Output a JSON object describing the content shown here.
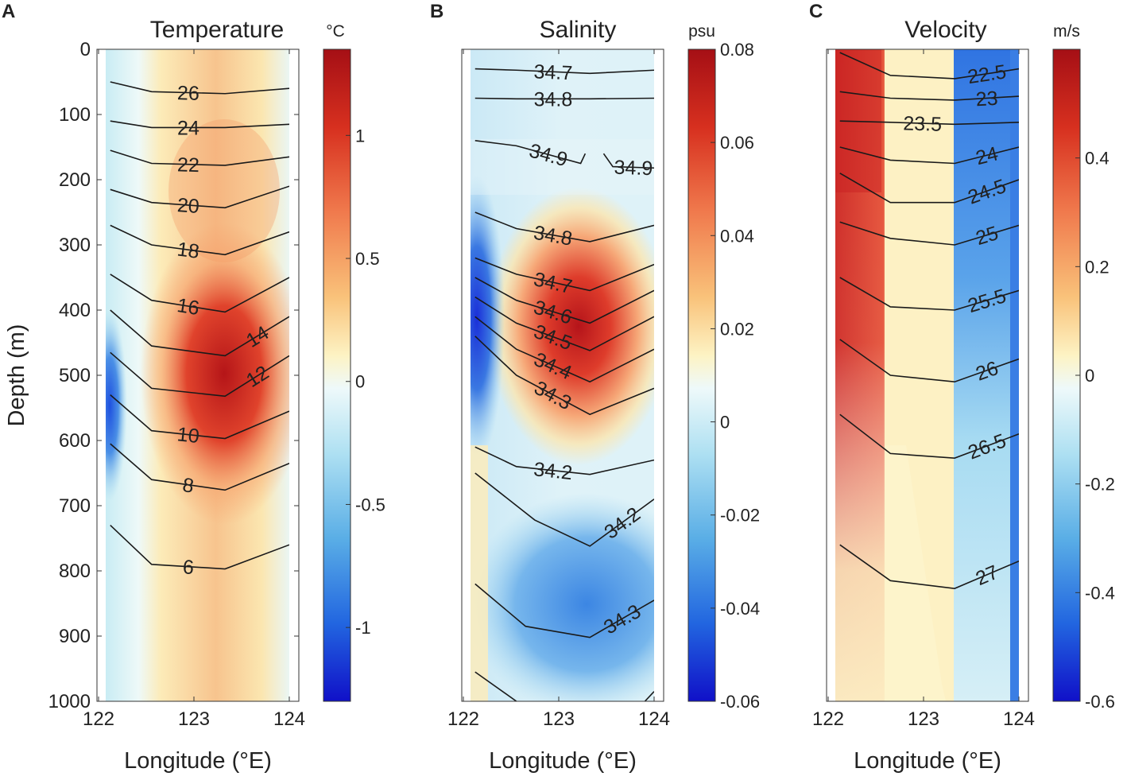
{
  "figure": {
    "ylabel": "Depth (m)",
    "y_ticks": [
      "0",
      "100",
      "200",
      "300",
      "400",
      "500",
      "600",
      "700",
      "800",
      "900",
      "1000"
    ]
  },
  "chart_data": [
    {
      "type": "heatmap",
      "panel": "A",
      "title": "Temperature",
      "xlabel": "Longitude (°E)",
      "x_ticks": [
        "122",
        "123",
        "124"
      ],
      "xlim": [
        122,
        124
      ],
      "ylim": [
        0,
        1000
      ],
      "y_reversed": true,
      "colorbar": {
        "unit": "°C",
        "range": [
          -1.3,
          1.35
        ],
        "ticks": [
          "1",
          "0.5",
          "0",
          "-0.5",
          "-1"
        ],
        "tick_values": [
          1,
          0.5,
          0,
          -0.5,
          -1
        ]
      },
      "contours": [
        {
          "label": "26",
          "line": [
            [
              122.05,
              50
            ],
            [
              122.5,
              65
            ],
            [
              123.3,
              68
            ],
            [
              124,
              60
            ]
          ]
        },
        {
          "label": "24",
          "line": [
            [
              122.05,
              110
            ],
            [
              122.5,
              120
            ],
            [
              123.3,
              120
            ],
            [
              124,
              115
            ]
          ]
        },
        {
          "label": "22",
          "line": [
            [
              122.05,
              155
            ],
            [
              122.5,
              175
            ],
            [
              123.3,
              178
            ],
            [
              124,
              165
            ]
          ]
        },
        {
          "label": "20",
          "line": [
            [
              122.05,
              215
            ],
            [
              122.5,
              235
            ],
            [
              123.3,
              243
            ],
            [
              124,
              210
            ]
          ]
        },
        {
          "label": "18",
          "line": [
            [
              122.05,
              270
            ],
            [
              122.5,
              300
            ],
            [
              123.3,
              315
            ],
            [
              124,
              280
            ]
          ]
        },
        {
          "label": "16",
          "line": [
            [
              122.05,
              345
            ],
            [
              122.5,
              385
            ],
            [
              123.3,
              403
            ],
            [
              124,
              350
            ]
          ]
        },
        {
          "label": "14",
          "line": [
            [
              122.05,
              400
            ],
            [
              122.5,
              455
            ],
            [
              123.3,
              470
            ],
            [
              124,
              410
            ]
          ]
        },
        {
          "label": "12",
          "line": [
            [
              122.05,
              465
            ],
            [
              122.5,
              520
            ],
            [
              123.3,
              532
            ],
            [
              124,
              470
            ]
          ]
        },
        {
          "label": "10",
          "line": [
            [
              122.05,
              530
            ],
            [
              122.5,
              585
            ],
            [
              123.3,
              597
            ],
            [
              124,
              555
            ]
          ]
        },
        {
          "label": "8",
          "line": [
            [
              122.05,
              605
            ],
            [
              122.5,
              660
            ],
            [
              123.3,
              676
            ],
            [
              124,
              635
            ]
          ]
        },
        {
          "label": "6",
          "line": [
            [
              122.05,
              730
            ],
            [
              122.5,
              790
            ],
            [
              123.3,
              797
            ],
            [
              124,
              760
            ]
          ]
        }
      ]
    },
    {
      "type": "heatmap",
      "panel": "B",
      "title": "Salinity",
      "xlabel": "Longitude (°E)",
      "x_ticks": [
        "122",
        "123",
        "124"
      ],
      "xlim": [
        122,
        124
      ],
      "ylim": [
        0,
        1000
      ],
      "y_reversed": true,
      "colorbar": {
        "unit": "psu",
        "range": [
          -0.06,
          0.08
        ],
        "ticks": [
          "0.08",
          "0.06",
          "0.04",
          "0.02",
          "0",
          "-0.02",
          "-0.04",
          "-0.06"
        ],
        "tick_values": [
          0.08,
          0.06,
          0.04,
          0.02,
          0,
          -0.02,
          -0.04,
          -0.06
        ]
      },
      "contours": [
        {
          "label": "34.7",
          "line": [
            [
              122.05,
              30
            ],
            [
              122.5,
              32
            ],
            [
              123.3,
              37
            ],
            [
              124,
              32
            ]
          ]
        },
        {
          "label": "34.8",
          "line": [
            [
              122.05,
              75
            ],
            [
              122.5,
              76
            ],
            [
              123.3,
              76
            ],
            [
              124,
              75
            ]
          ]
        },
        {
          "label": "34.9",
          "line": [
            [
              122.05,
              140
            ],
            [
              122.5,
              148
            ],
            [
              123.2,
              175
            ],
            [
              123.25,
              160
            ]
          ]
        },
        {
          "label": "34.9",
          "line": [
            [
              123.45,
              160
            ],
            [
              123.55,
              180
            ],
            [
              124,
              182
            ]
          ]
        },
        {
          "label": "34.8",
          "line": [
            [
              122.05,
              250
            ],
            [
              122.5,
              275
            ],
            [
              123.3,
              295
            ],
            [
              124,
              270
            ]
          ]
        },
        {
          "label": "34.7",
          "line": [
            [
              122.05,
              320
            ],
            [
              122.5,
              345
            ],
            [
              123.3,
              370
            ],
            [
              124,
              330
            ]
          ]
        },
        {
          "label": "34.6",
          "line": [
            [
              122.05,
              350
            ],
            [
              122.5,
              385
            ],
            [
              123.3,
              420
            ],
            [
              124,
              370
            ]
          ]
        },
        {
          "label": "34.5",
          "line": [
            [
              122.05,
              380
            ],
            [
              122.5,
              420
            ],
            [
              123.3,
              462
            ],
            [
              124,
              410
            ]
          ]
        },
        {
          "label": "34.4",
          "line": [
            [
              122.05,
              410
            ],
            [
              122.5,
              460
            ],
            [
              123.3,
              510
            ],
            [
              124,
              460
            ]
          ]
        },
        {
          "label": "34.3",
          "line": [
            [
              122.05,
              440
            ],
            [
              122.5,
              500
            ],
            [
              123.3,
              560
            ],
            [
              124,
              520
            ]
          ]
        },
        {
          "label": "34.2",
          "line": [
            [
              122.05,
              610
            ],
            [
              122.5,
              640
            ],
            [
              123.3,
              652
            ],
            [
              124,
              630
            ]
          ]
        },
        {
          "label": "34.2",
          "line": [
            [
              122.05,
              650
            ],
            [
              122.7,
              722
            ],
            [
              123.3,
              762
            ],
            [
              124,
              690
            ]
          ]
        },
        {
          "label": "34.3",
          "line": [
            [
              122.05,
              820
            ],
            [
              122.6,
              885
            ],
            [
              123.3,
              902
            ],
            [
              124,
              845
            ]
          ]
        },
        {
          "label": "",
          "line": [
            [
              122.05,
              955
            ],
            [
              122.5,
              1000
            ]
          ]
        },
        {
          "label": "",
          "line": [
            [
              123.9,
              1000
            ],
            [
              124,
              985
            ]
          ]
        }
      ]
    },
    {
      "type": "heatmap",
      "panel": "C",
      "title": "Velocity",
      "xlabel": "Longitude (°E)",
      "x_ticks": [
        "122",
        "123",
        "124"
      ],
      "xlim": [
        122,
        124
      ],
      "ylim": [
        0,
        1000
      ],
      "y_reversed": true,
      "colorbar": {
        "unit": "m/s",
        "range": [
          -0.6,
          0.6
        ],
        "ticks": [
          "0.4",
          "0.2",
          "0",
          "-0.2",
          "-0.4",
          "-0.6"
        ],
        "tick_values": [
          0.4,
          0.2,
          0,
          -0.2,
          -0.4,
          -0.6
        ]
      },
      "contours": [
        {
          "label": "22.5",
          "line": [
            [
              122.05,
              5
            ],
            [
              122.6,
              40
            ],
            [
              123.3,
              45
            ],
            [
              124,
              30
            ]
          ]
        },
        {
          "label": "23",
          "line": [
            [
              122.05,
              65
            ],
            [
              122.6,
              75
            ],
            [
              123.3,
              78
            ],
            [
              124,
              72
            ]
          ]
        },
        {
          "label": "23.5",
          "line": [
            [
              122.05,
              110
            ],
            [
              122.6,
              112
            ],
            [
              123.3,
              115
            ],
            [
              124,
              112
            ]
          ]
        },
        {
          "label": "24",
          "line": [
            [
              122.05,
              150
            ],
            [
              122.6,
              170
            ],
            [
              123.3,
              175
            ],
            [
              124,
              150
            ]
          ]
        },
        {
          "label": "24.5",
          "line": [
            [
              122.05,
              190
            ],
            [
              122.6,
              235
            ],
            [
              123.3,
              235
            ],
            [
              124,
              200
            ]
          ]
        },
        {
          "label": "25",
          "line": [
            [
              122.05,
              265
            ],
            [
              122.6,
              290
            ],
            [
              123.3,
              300
            ],
            [
              124,
              270
            ]
          ]
        },
        {
          "label": "25.5",
          "line": [
            [
              122.05,
              350
            ],
            [
              122.6,
              395
            ],
            [
              123.3,
              400
            ],
            [
              124,
              370
            ]
          ]
        },
        {
          "label": "26",
          "line": [
            [
              122.05,
              445
            ],
            [
              122.6,
              500
            ],
            [
              123.3,
              510
            ],
            [
              124,
              475
            ]
          ]
        },
        {
          "label": "26.5",
          "line": [
            [
              122.05,
              560
            ],
            [
              122.6,
              620
            ],
            [
              123.3,
              627
            ],
            [
              124,
              590
            ]
          ]
        },
        {
          "label": "27",
          "line": [
            [
              122.05,
              760
            ],
            [
              122.6,
              815
            ],
            [
              123.3,
              827
            ],
            [
              124,
              785
            ]
          ]
        }
      ]
    }
  ]
}
